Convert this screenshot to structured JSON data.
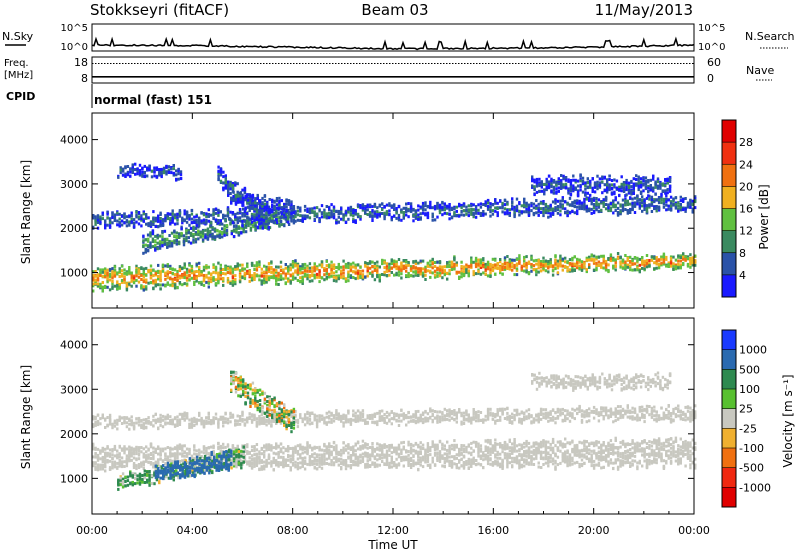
{
  "header": {
    "station": "Stokkseyri (fitACF)",
    "beam": "Beam 03",
    "date": "11/May/2013"
  },
  "noise_panel": {
    "left_label": "N.Sky",
    "left_ticks": [
      "10^5",
      "10^0"
    ],
    "right_ticks": [
      "10^5",
      "10^0"
    ],
    "right_label": "N.Search"
  },
  "freq_panel": {
    "left_label_1": "Freq.",
    "left_label_2": "[MHz]",
    "left_ticks": [
      "18",
      "8"
    ],
    "right_ticks": [
      "60",
      "0"
    ],
    "right_label": "Nave",
    "freq_mhz": 10,
    "nave": 45
  },
  "cpid_panel": {
    "label": "CPID",
    "program": "normal (fast) 151"
  },
  "axes": {
    "x_ticks": [
      "00:00",
      "04:00",
      "08:00",
      "12:00",
      "16:00",
      "20:00",
      "00:00"
    ],
    "xlabel": "Time UT",
    "ylabel": "Slant Range [km]",
    "y_ticks": [
      "1000",
      "2000",
      "3000",
      "4000"
    ],
    "ylim": [
      200,
      4600
    ]
  },
  "power_colorbar": {
    "label": "Power [dB]",
    "ticks": [
      "4",
      "8",
      "12",
      "16",
      "20",
      "24",
      "28"
    ],
    "colors": [
      "#1a1aff",
      "#2a52a8",
      "#3a8a60",
      "#60c040",
      "#f0b020",
      "#f07010",
      "#f03010",
      "#e00000"
    ]
  },
  "velocity_colorbar": {
    "label": "Velocity [m s⁻¹]",
    "ticks": [
      "1000",
      "500",
      "100",
      "25",
      "-25",
      "-100",
      "-500",
      "-1000"
    ],
    "colors": [
      "#1a3aff",
      "#2a6ab0",
      "#2e8a50",
      "#58c030",
      "#c8c8c0",
      "#f0b030",
      "#f07010",
      "#f02810",
      "#e00000"
    ]
  },
  "chart_data": {
    "type": "heatmap",
    "x_unit": "hours UT",
    "y_unit": "km",
    "xlim": [
      0,
      24
    ],
    "ylim": [
      200,
      4600
    ],
    "power_bands": [
      {
        "t": [
          0,
          24
        ],
        "range_center": [
          900,
          1300
        ],
        "range_width": [
          500,
          300
        ],
        "power_db": 22
      },
      {
        "t": [
          2,
          8
        ],
        "range_center": [
          1700,
          2300
        ],
        "range_width": [
          400,
          300
        ],
        "power_db": 12
      },
      {
        "t": [
          0,
          24
        ],
        "range_center": [
          2200,
          2600
        ],
        "range_width": [
          300,
          350
        ],
        "power_db": 8
      },
      {
        "t": [
          5,
          7
        ],
        "range_center": [
          3200,
          2200
        ],
        "range_width": [
          400,
          500
        ],
        "power_db": 8
      },
      {
        "t": [
          17.5,
          23
        ],
        "range_center": [
          3000,
          3000
        ],
        "range_width": [
          350,
          400
        ],
        "power_db": 6
      },
      {
        "t": [
          1,
          3.5
        ],
        "range_center": [
          3300,
          3300
        ],
        "range_width": [
          250,
          250
        ],
        "power_db": 6
      },
      {
        "t": [
          5.5,
          8
        ],
        "range_center": [
          2700,
          2500
        ],
        "range_width": [
          300,
          300
        ],
        "power_db": 6
      }
    ],
    "velocity_bands": [
      {
        "t": [
          0,
          24
        ],
        "range_center": [
          1500,
          1600
        ],
        "range_width": [
          500,
          600
        ],
        "velocity": 0
      },
      {
        "t": [
          1,
          6
        ],
        "range_center": [
          950,
          1500
        ],
        "range_width": [
          300,
          400
        ],
        "velocity": 150
      },
      {
        "t": [
          2.5,
          5.5
        ],
        "range_center": [
          1150,
          1450
        ],
        "range_width": [
          300,
          400
        ],
        "velocity": 800
      },
      {
        "t": [
          0,
          24
        ],
        "range_center": [
          2300,
          2500
        ],
        "range_width": [
          250,
          300
        ],
        "velocity": 0
      },
      {
        "t": [
          5.5,
          8
        ],
        "range_center": [
          3200,
          2300
        ],
        "range_width": [
          500,
          500
        ],
        "velocity": 50
      },
      {
        "t": [
          17.5,
          23
        ],
        "range_center": [
          3200,
          3200
        ],
        "range_width": [
          300,
          300
        ],
        "velocity": 0
      }
    ],
    "noise_level_log10": [
      {
        "t": 0,
        "v": 1.1
      },
      {
        "t": 4,
        "v": 1.0
      },
      {
        "t": 8,
        "v": 0.7
      },
      {
        "t": 12,
        "v": 0.4
      },
      {
        "t": 16,
        "v": 0.5
      },
      {
        "t": 20,
        "v": 0.7
      },
      {
        "t": 24,
        "v": 1.1
      }
    ]
  }
}
